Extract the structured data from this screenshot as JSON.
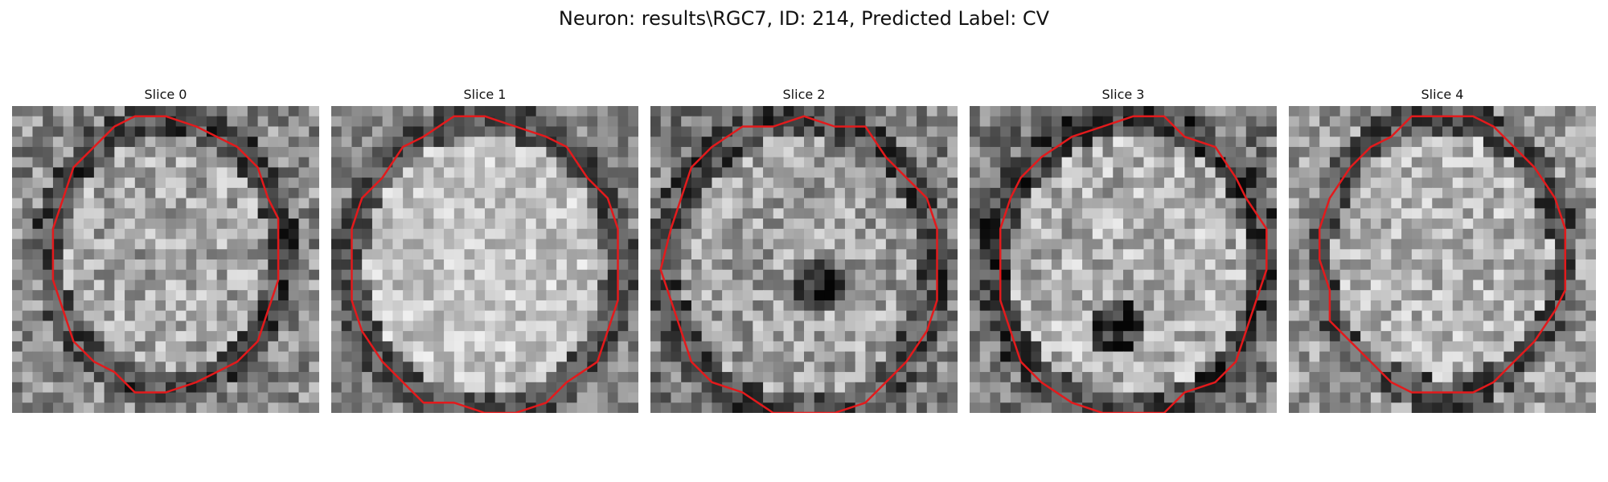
{
  "figure": {
    "title": "Neuron: results\\RGC7, ID: 214, Predicted Label: CV"
  },
  "colors": {
    "outline": "#e31a1c",
    "background": "#ffffff"
  },
  "slices": [
    {
      "label": "Slice 0"
    },
    {
      "label": "Slice 1"
    },
    {
      "label": "Slice 2"
    },
    {
      "label": "Slice 3"
    },
    {
      "label": "Slice 4"
    }
  ]
}
